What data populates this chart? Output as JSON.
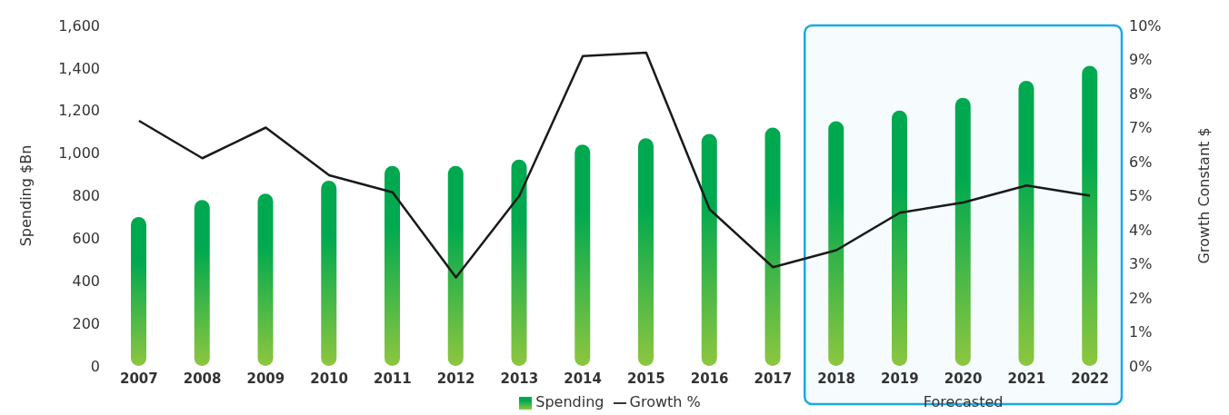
{
  "chart_data": {
    "type": "bar",
    "categories": [
      "2007",
      "2008",
      "2009",
      "2010",
      "2011",
      "2012",
      "2013",
      "2014",
      "2015",
      "2016",
      "2017",
      "2018",
      "2019",
      "2020",
      "2021",
      "2022"
    ],
    "series": [
      {
        "name": "Spending",
        "color": "#00a94f",
        "values": [
          700,
          780,
          810,
          870,
          940,
          940,
          970,
          1040,
          1070,
          1090,
          1120,
          1150,
          1200,
          1260,
          1340,
          1410
        ]
      },
      {
        "name": "Growth %",
        "type": "line",
        "axis": "y2",
        "color": "#1a1a1a",
        "values": [
          7.2,
          6.1,
          7.0,
          5.6,
          5.1,
          2.6,
          5.0,
          9.1,
          9.2,
          4.6,
          2.9,
          3.4,
          4.5,
          4.8,
          5.3,
          5.0
        ]
      }
    ],
    "ylabel": "Spending $Bn",
    "y2label": "Growth Constant $",
    "ylim": [
      0,
      1600
    ],
    "yticks": [
      {
        "value": 0,
        "label": "0"
      },
      {
        "value": 200,
        "label": "200"
      },
      {
        "value": 400,
        "label": "400"
      },
      {
        "value": 600,
        "label": "600"
      },
      {
        "value": 800,
        "label": "800"
      },
      {
        "value": 1000,
        "label": "1,000"
      },
      {
        "value": 1200,
        "label": "1,200"
      },
      {
        "value": 1400,
        "label": "1,400"
      },
      {
        "value": 1600,
        "label": "1,600"
      }
    ],
    "y2lim": [
      0,
      10
    ],
    "y2ticks": [
      {
        "value": 0,
        "label": "0%"
      },
      {
        "value": 1,
        "label": "1%"
      },
      {
        "value": 2,
        "label": "2%"
      },
      {
        "value": 3,
        "label": "3%"
      },
      {
        "value": 4,
        "label": "4%"
      },
      {
        "value": 5,
        "label": "5%"
      },
      {
        "value": 6,
        "label": "6%"
      },
      {
        "value": 7,
        "label": "7%"
      },
      {
        "value": 8,
        "label": "8%"
      },
      {
        "value": 9,
        "label": "9%"
      },
      {
        "value": 10,
        "label": "10%"
      }
    ],
    "bands": [
      {
        "axis": "x",
        "from": "2018",
        "to": "2022",
        "label": "Forecasted",
        "color": "#1ba9e1"
      }
    ],
    "legend": "bottom",
    "grid": false,
    "marker": "none",
    "line_style": "solid"
  }
}
